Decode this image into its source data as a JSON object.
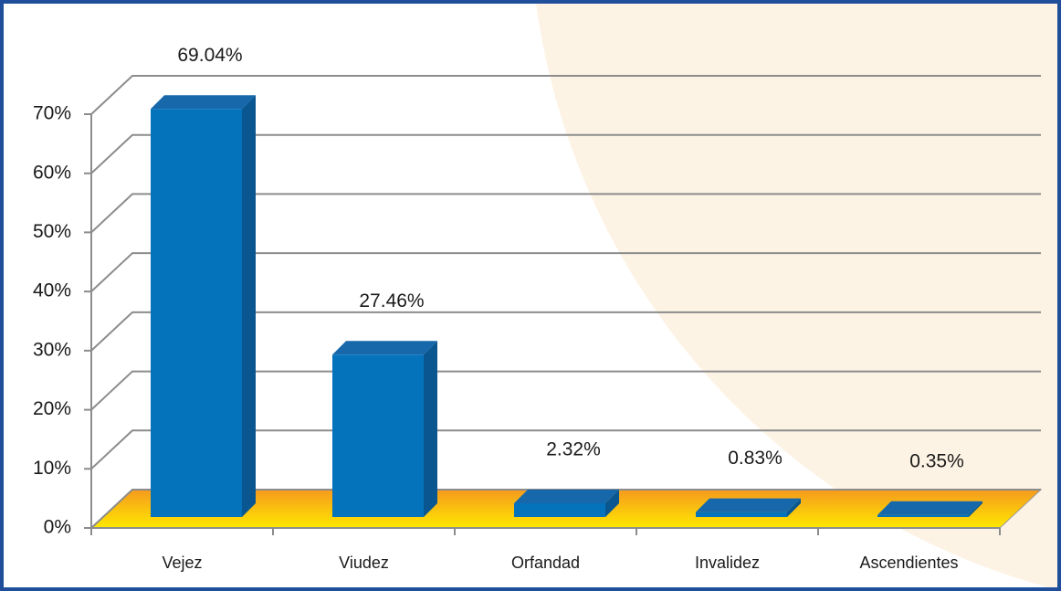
{
  "chart_data": {
    "type": "bar3d",
    "categories": [
      "Vejez",
      "Viudez",
      "Orfandad",
      "Invalidez",
      "Ascendientes"
    ],
    "values": [
      69.04,
      27.46,
      2.32,
      0.83,
      0.35
    ],
    "value_labels": [
      "69.04%",
      "27.46%",
      "2.32%",
      "0.83%",
      "0.35%"
    ],
    "color": "#0572bc",
    "ylim": [
      0,
      70
    ],
    "yticks": [
      {
        "value": 0,
        "label": "0%"
      },
      {
        "value": 10,
        "label": "10%"
      },
      {
        "value": 20,
        "label": "20%"
      },
      {
        "value": 30,
        "label": "30%"
      },
      {
        "value": 40,
        "label": "40%"
      },
      {
        "value": 50,
        "label": "50%"
      },
      {
        "value": 60,
        "label": "60%"
      },
      {
        "value": 70,
        "label": "70%"
      }
    ],
    "grid": true
  }
}
